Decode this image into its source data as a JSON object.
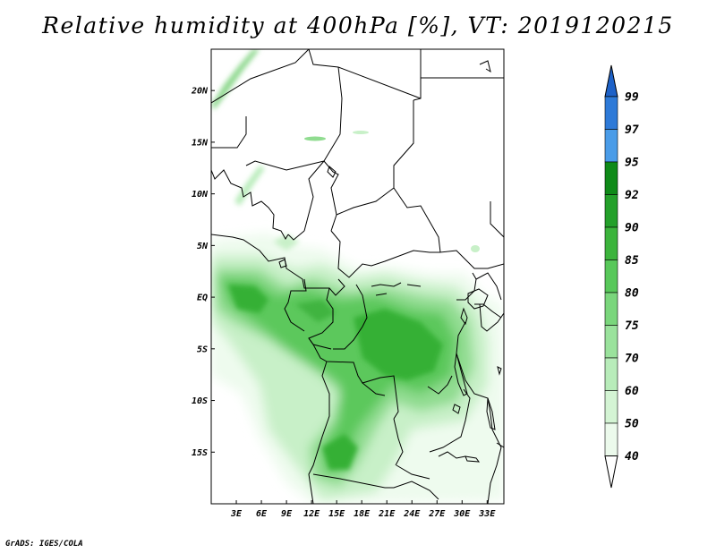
{
  "title": "Relative humidity at 400hPa [%], VT: 2019120215",
  "credit": "GrADS: IGES/COLA",
  "map": {
    "lon_range": [
      0,
      35
    ],
    "lat_range": [
      -20,
      24
    ],
    "x_ticks": [
      "3E",
      "6E",
      "9E",
      "12E",
      "15E",
      "18E",
      "21E",
      "24E",
      "27E",
      "30E",
      "33E"
    ],
    "y_ticks": [
      "20N",
      "15N",
      "10N",
      "5N",
      "EQ",
      "5S",
      "10S",
      "15S"
    ]
  },
  "colorbar": {
    "levels": [
      "99",
      "97",
      "95",
      "92",
      "90",
      "85",
      "80",
      "75",
      "70",
      "60",
      "50",
      "40"
    ],
    "colors": [
      "#1e62c8",
      "#2e7ad8",
      "#4a9ce8",
      "#0f8a18",
      "#24a02a",
      "#3cb43c",
      "#58c85a",
      "#7ad67c",
      "#9ae29c",
      "#b8ecba",
      "#d4f4d4",
      "#ecfaec"
    ],
    "top_arrow_color": "#1e62c8",
    "bottom_arrow_color": "#ffffff"
  }
}
